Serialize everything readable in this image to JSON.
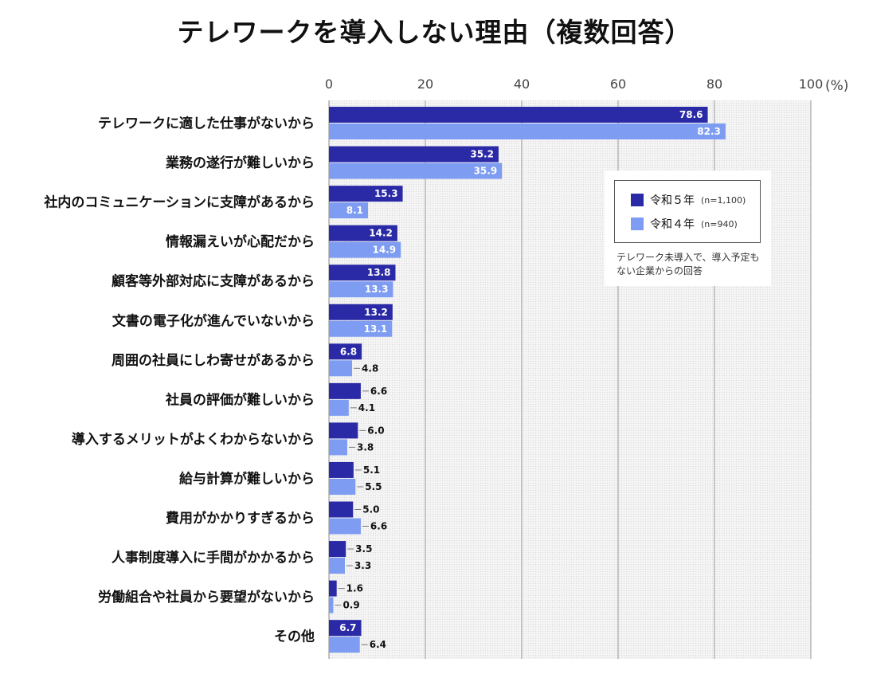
{
  "title": "テレワークを導入しない理由（複数回答）",
  "chart_data": {
    "type": "bar",
    "orientation": "horizontal",
    "title": "テレワークを導入しない理由（複数回答）",
    "unit": "(%)",
    "xlim": [
      0,
      100
    ],
    "ticks": [
      "0",
      "20",
      "40",
      "60",
      "80",
      "100"
    ],
    "tick_values": [
      0,
      20,
      40,
      60,
      80,
      100
    ],
    "grid": true,
    "legend_position": "top-right",
    "categories": [
      "テレワークに適した仕事がないから",
      "業務の遂行が難しいから",
      "社内のコミュニケーションに支障があるから",
      "情報漏えいが心配だから",
      "顧客等外部対応に支障があるから",
      "文書の電子化が進んでいないから",
      "周囲の社員にしわ寄せがあるから",
      "社員の評価が難しいから",
      "導入するメリットがよくわからないから",
      "給与計算が難しいから",
      "費用がかかりすぎるから",
      "人事制度導入に手間がかかるから",
      "労働組合や社員から要望がないから",
      "その他"
    ],
    "series": [
      {
        "name": "令和５年",
        "n": "(n=1,100)",
        "color": "#2b2aa6",
        "values": [
          78.6,
          35.2,
          15.3,
          14.2,
          13.8,
          13.2,
          6.8,
          6.6,
          6.0,
          5.1,
          5.0,
          3.5,
          1.6,
          6.7
        ],
        "labels": [
          "78.6",
          "35.2",
          "15.3",
          "14.2",
          "13.8",
          "13.2",
          "6.8",
          "6.6",
          "6.0",
          "5.1",
          "5.0",
          "3.5",
          "1.6",
          "6.7"
        ]
      },
      {
        "name": "令和４年",
        "n": "(n=940)",
        "color": "#7d9cf2",
        "values": [
          82.3,
          35.9,
          8.1,
          14.9,
          13.3,
          13.1,
          4.8,
          4.1,
          3.8,
          5.5,
          6.6,
          3.3,
          0.9,
          6.4
        ],
        "labels": [
          "82.3",
          "35.9",
          "8.1",
          "14.9",
          "13.3",
          "13.1",
          "4.8",
          "4.1",
          "3.8",
          "5.5",
          "6.6",
          "3.3",
          "0.9",
          "6.4"
        ]
      }
    ],
    "note": "テレワーク未導入で、導入予定もない企業からの回答"
  }
}
